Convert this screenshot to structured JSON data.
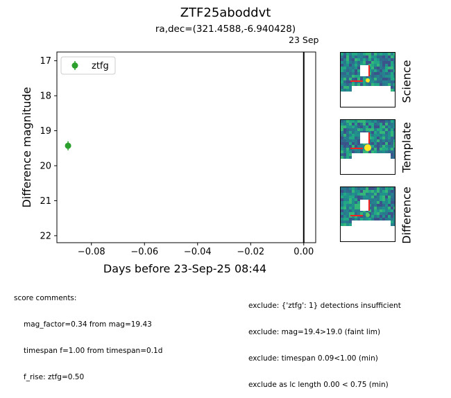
{
  "title": "ZTF25aboddvt",
  "subtitle": "ra,dec=(321.4588,-6.940428)",
  "chart_data": {
    "type": "scatter",
    "xlabel": "Days before 23-Sep-25 08:44",
    "ylabel": "Difference magnitude",
    "xlim": [
      -0.093,
      0.0045
    ],
    "ylim": [
      22.2,
      16.75
    ],
    "y_inverted": true,
    "xticks": [
      -0.08,
      -0.06,
      -0.04,
      -0.02,
      0.0
    ],
    "xtick_labels": [
      "−0.08",
      "−0.06",
      "−0.04",
      "−0.02",
      "0.00"
    ],
    "yticks": [
      17,
      18,
      19,
      20,
      21,
      22
    ],
    "ytick_labels": [
      "17",
      "18",
      "19",
      "20",
      "21",
      "22"
    ],
    "grid": false,
    "legend_position": "top-left",
    "series": [
      {
        "name": "ztfg",
        "color": "#2ca02c",
        "points": [
          {
            "x": -0.0888,
            "y": 19.43,
            "yerr": 0.13
          }
        ]
      }
    ],
    "vline": {
      "x": 0.0,
      "label": "23 Sep"
    }
  },
  "stamps": [
    {
      "label": "Science"
    },
    {
      "label": "Template"
    },
    {
      "label": "Difference"
    }
  ],
  "score_comments": {
    "heading": "score comments:",
    "lines": [
      "mag_factor=0.34 from mag=19.43",
      "timespan f=1.00 from timespan=0.1d",
      "f_rise: ztfg=0.50"
    ]
  },
  "exclude_comments": [
    "exclude: {'ztfg': 1} detections insufficient",
    "exclude: mag=19.4>19.0 (faint lim)",
    "exclude: timespan 0.09<1.00 (min)",
    "exclude as lc length 0.00 < 0.75 (min)"
  ]
}
